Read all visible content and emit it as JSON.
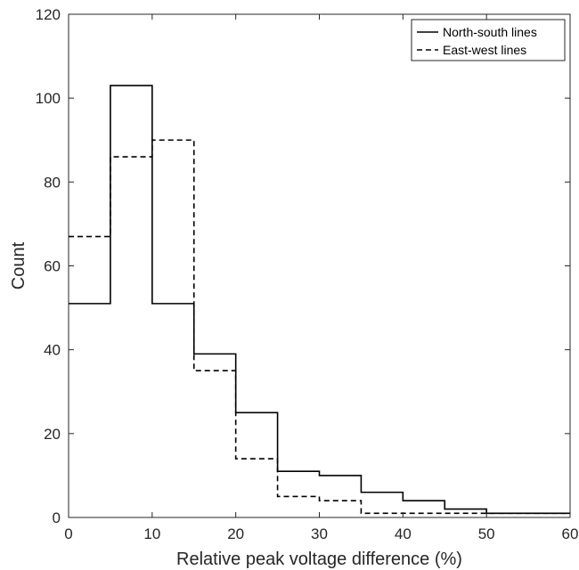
{
  "chart_data": {
    "type": "line",
    "subtype": "step-histogram",
    "title": "",
    "xlabel": "Relative peak voltage difference (%)",
    "ylabel": "Count",
    "xlim": [
      0,
      60
    ],
    "ylim": [
      0,
      120
    ],
    "xticks": [
      0,
      10,
      20,
      30,
      40,
      50,
      60
    ],
    "yticks": [
      0,
      20,
      40,
      60,
      80,
      100,
      120
    ],
    "bin_edges": [
      0,
      5,
      10,
      15,
      20,
      25,
      30,
      35,
      40,
      45,
      50,
      55,
      60
    ],
    "grid": false,
    "legend_position": "top-right",
    "series": [
      {
        "name": "North-south lines",
        "style": "solid",
        "color": "#000000",
        "values": [
          51,
          103,
          51,
          39,
          25,
          11,
          10,
          6,
          4,
          2,
          1,
          1
        ]
      },
      {
        "name": "East-west lines",
        "style": "dashed",
        "color": "#000000",
        "values": [
          67,
          86,
          90,
          35,
          14,
          5,
          4,
          1,
          1,
          1,
          1,
          1
        ]
      }
    ]
  }
}
